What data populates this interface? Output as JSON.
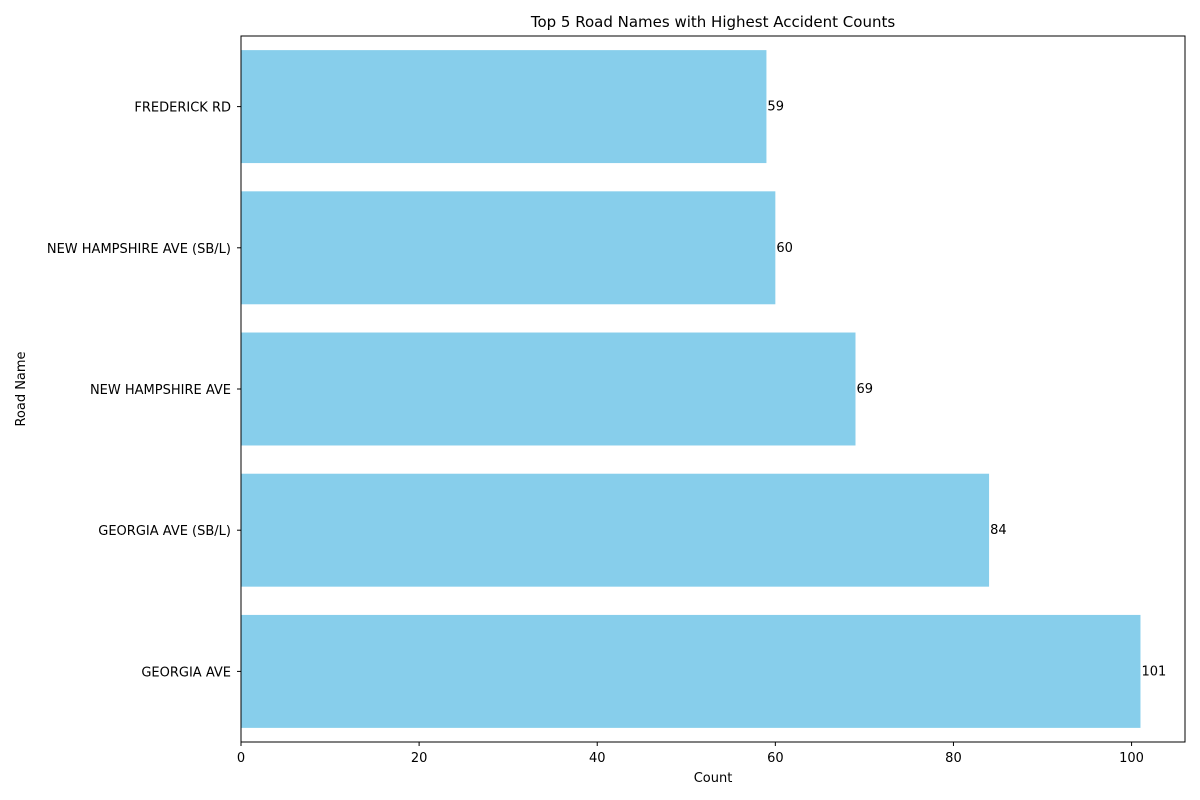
{
  "chart_data": {
    "type": "bar",
    "orientation": "horizontal",
    "title": "Top 5 Road Names with Highest Accident Counts",
    "xlabel": "Count",
    "ylabel": "Road Name",
    "categories": [
      "GEORGIA AVE",
      "GEORGIA AVE (SB/L)",
      "NEW HAMPSHIRE AVE",
      "NEW HAMPSHIRE AVE (SB/L)",
      "FREDERICK RD"
    ],
    "values": [
      101,
      84,
      69,
      60,
      59
    ],
    "xlim": [
      0,
      106
    ],
    "xticks": [
      0,
      20,
      40,
      60,
      80,
      100
    ],
    "bar_color": "#87ceeb",
    "grid": false,
    "legend": "none"
  }
}
